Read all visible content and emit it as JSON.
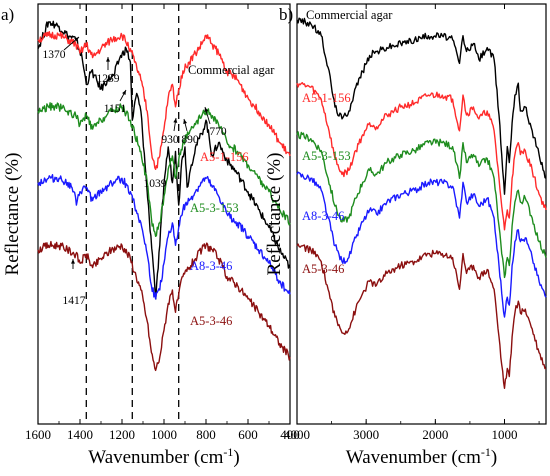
{
  "chart_data": [
    {
      "panel": "a)",
      "type": "line",
      "xlabel": "Wavenumber (cm",
      "xlabel_sup": "-1",
      "xlabel_tail": ")",
      "ylabel": "Reflectance (%)",
      "xlim": [
        1600,
        400
      ],
      "x_ticks": [
        "1600",
        "1400",
        "1200",
        "1000",
        "800",
        "600",
        "400"
      ],
      "y_ticks_shown": false,
      "dashed_reference_lines": [
        1370,
        1151,
        930
      ],
      "series": [
        {
          "name": "Commercial agar",
          "color": "#000000",
          "x": [
            1600,
            1550,
            1500,
            1460,
            1420,
            1390,
            1370,
            1345,
            1300,
            1270,
            1239,
            1210,
            1180,
            1160,
            1151,
            1130,
            1110,
            1090,
            1070,
            1055,
            1039,
            1020,
            1000,
            980,
            960,
            945,
            930,
            915,
            900,
            890,
            870,
            850,
            820,
            800,
            770,
            740,
            700,
            650,
            600,
            550,
            500,
            450,
            400
          ],
          "y": [
            28.0,
            31.0,
            30.5,
            29.5,
            29.0,
            27.0,
            24.0,
            25.5,
            23.5,
            24.5,
            25.0,
            27.0,
            28.0,
            26.5,
            20.0,
            23.0,
            21.0,
            15.0,
            9.0,
            5.0,
            0.0,
            6.0,
            13.0,
            17.0,
            13.0,
            16.5,
            10.5,
            15.5,
            17.0,
            12.5,
            15.0,
            17.0,
            18.5,
            20.0,
            16.0,
            17.5,
            15.5,
            14.0,
            12.0,
            10.0,
            8.0,
            5.5,
            3.5
          ]
        },
        {
          "name": "A5-1-156",
          "color": "#ff2a2a",
          "x": [
            1600,
            1550,
            1500,
            1460,
            1420,
            1400,
            1370,
            1340,
            1300,
            1250,
            1200,
            1160,
            1140,
            1110,
            1080,
            1060,
            1040,
            1020,
            1000,
            980,
            960,
            945,
            930,
            910,
            880,
            850,
            820,
            800,
            770,
            740,
            700,
            650,
            600,
            550,
            500,
            450,
            400
          ],
          "y": [
            29.0,
            29.5,
            29.5,
            29.0,
            28.5,
            27.5,
            28.5,
            27.0,
            28.0,
            29.0,
            29.5,
            28.0,
            26.5,
            24.5,
            21.0,
            16.5,
            14.5,
            16.0,
            19.0,
            22.5,
            24.0,
            21.5,
            23.5,
            25.5,
            26.5,
            27.5,
            28.5,
            29.5,
            28.5,
            27.5,
            25.5,
            24.5,
            22.5,
            21.0,
            19.5,
            17.5,
            16.0
          ]
        },
        {
          "name": "A5-3-153",
          "color": "#1e8c1e",
          "x": [
            1600,
            1550,
            1500,
            1460,
            1420,
            1400,
            1370,
            1340,
            1300,
            1250,
            1200,
            1160,
            1140,
            1110,
            1080,
            1060,
            1040,
            1020,
            1000,
            980,
            960,
            945,
            930,
            910,
            880,
            850,
            820,
            800,
            770,
            740,
            700,
            650,
            600,
            550,
            500,
            450,
            400
          ],
          "y": [
            21.0,
            21.5,
            21.5,
            21.0,
            20.5,
            19.5,
            20.5,
            19.0,
            20.0,
            21.0,
            21.5,
            20.0,
            18.5,
            16.5,
            13.0,
            9.0,
            7.0,
            8.5,
            11.5,
            14.5,
            16.0,
            13.5,
            15.5,
            17.5,
            18.5,
            19.5,
            20.5,
            21.0,
            20.5,
            19.5,
            17.5,
            16.5,
            15.0,
            13.5,
            12.0,
            10.0,
            8.5
          ]
        },
        {
          "name": "A8-3-46",
          "color": "#1a1aff",
          "x": [
            1600,
            1550,
            1500,
            1460,
            1430,
            1417,
            1400,
            1370,
            1340,
            1300,
            1250,
            1200,
            1160,
            1140,
            1110,
            1080,
            1060,
            1040,
            1020,
            1000,
            980,
            960,
            945,
            930,
            910,
            880,
            850,
            820,
            800,
            770,
            740,
            700,
            650,
            600,
            550,
            500,
            450,
            400
          ],
          "y": [
            13.0,
            13.5,
            13.5,
            13.0,
            12.0,
            10.5,
            12.0,
            12.5,
            11.0,
            12.0,
            13.0,
            13.5,
            12.0,
            10.5,
            8.5,
            5.0,
            1.5,
            0.0,
            1.0,
            4.0,
            7.0,
            8.5,
            6.0,
            8.0,
            10.0,
            11.0,
            12.0,
            13.0,
            13.5,
            12.5,
            11.5,
            9.5,
            8.5,
            7.0,
            5.5,
            4.0,
            2.0,
            0.5
          ]
        },
        {
          "name": "A5-3-46",
          "color": "#8b0f0f",
          "x": [
            1600,
            1550,
            1500,
            1460,
            1420,
            1400,
            1370,
            1340,
            1300,
            1250,
            1200,
            1160,
            1140,
            1110,
            1080,
            1060,
            1040,
            1020,
            1000,
            980,
            960,
            945,
            930,
            910,
            880,
            850,
            820,
            800,
            770,
            740,
            700,
            650,
            600,
            550,
            500,
            450,
            400
          ],
          "y": [
            5.5,
            6.0,
            6.0,
            5.5,
            5.0,
            4.0,
            5.0,
            3.5,
            4.5,
            5.5,
            6.0,
            4.5,
            3.0,
            1.0,
            -2.5,
            -6.0,
            -8.0,
            -6.5,
            -3.5,
            -0.5,
            1.0,
            -1.5,
            0.5,
            2.5,
            3.5,
            4.5,
            5.5,
            6.0,
            5.5,
            4.5,
            2.5,
            1.5,
            0.0,
            -1.5,
            -3.0,
            -5.0,
            -6.5
          ]
        }
      ],
      "annotations": [
        "1370",
        "1239",
        "1151",
        "1039",
        "930",
        "890",
        "770",
        "1417"
      ]
    },
    {
      "panel": "b)",
      "type": "line",
      "xlabel": "Wavenumber (cm",
      "xlabel_sup": "-1",
      "xlabel_tail": ")",
      "ylabel": "Reflectance (%)",
      "xlim": [
        4000,
        400
      ],
      "x_ticks": [
        "4000",
        "3000",
        "2000",
        "1000"
      ],
      "y_ticks_shown": false,
      "series": [
        {
          "name": "Commercial agar",
          "color": "#000000",
          "x": [
            4000,
            3800,
            3650,
            3550,
            3450,
            3350,
            3250,
            3150,
            3050,
            2950,
            2850,
            2700,
            2500,
            2300,
            2100,
            1900,
            1750,
            1650,
            1600,
            1550,
            1450,
            1370,
            1250,
            1150,
            1080,
            1040,
            1000,
            960,
            930,
            890,
            850,
            800,
            770,
            700,
            600,
            500,
            400
          ],
          "y": [
            29.0,
            28.5,
            27.0,
            23.0,
            18.0,
            16.5,
            17.5,
            20.5,
            22.5,
            24.5,
            25.0,
            25.5,
            26.0,
            26.5,
            27.0,
            27.0,
            26.5,
            23.5,
            27.0,
            25.0,
            26.0,
            24.0,
            25.5,
            24.0,
            17.0,
            12.0,
            7.0,
            13.0,
            11.0,
            16.0,
            19.5,
            21.0,
            17.5,
            18.0,
            15.0,
            12.0,
            9.0
          ]
        },
        {
          "name": "A5-1-156",
          "color": "#ff2a2a",
          "x": [
            4000,
            3800,
            3650,
            3550,
            3450,
            3350,
            3250,
            3150,
            3050,
            2950,
            2850,
            2700,
            2500,
            2300,
            2100,
            1900,
            1750,
            1650,
            1600,
            1550,
            1450,
            1370,
            1250,
            1150,
            1080,
            1040,
            1000,
            960,
            930,
            890,
            850,
            800,
            770,
            700,
            600,
            500,
            400
          ],
          "y": [
            21.0,
            20.5,
            19.0,
            15.5,
            11.5,
            9.5,
            10.0,
            12.5,
            14.5,
            16.0,
            15.5,
            17.0,
            18.0,
            18.5,
            19.5,
            19.5,
            19.0,
            15.0,
            19.5,
            17.0,
            18.0,
            16.5,
            17.5,
            15.0,
            9.0,
            5.5,
            2.5,
            5.0,
            4.0,
            9.0,
            12.0,
            13.5,
            12.0,
            12.5,
            10.0,
            7.0,
            5.0
          ]
        },
        {
          "name": "A5-3-153",
          "color": "#1e8c1e",
          "x": [
            4000,
            3800,
            3650,
            3550,
            3450,
            3350,
            3250,
            3150,
            3050,
            2950,
            2850,
            2700,
            2500,
            2300,
            2100,
            1900,
            1750,
            1650,
            1600,
            1550,
            1450,
            1370,
            1250,
            1150,
            1080,
            1040,
            1000,
            960,
            930,
            890,
            850,
            800,
            770,
            700,
            600,
            500,
            400
          ],
          "y": [
            14.5,
            14.0,
            12.5,
            9.0,
            5.5,
            3.5,
            4.0,
            6.5,
            8.5,
            10.0,
            9.5,
            11.0,
            12.0,
            12.5,
            13.5,
            13.5,
            13.0,
            9.0,
            13.5,
            11.0,
            12.0,
            10.5,
            11.5,
            9.0,
            3.0,
            -0.5,
            -3.5,
            -1.0,
            -2.0,
            3.0,
            6.0,
            7.5,
            6.0,
            6.5,
            4.0,
            1.0,
            -1.0
          ]
        },
        {
          "name": "A8-3-46",
          "color": "#1a1aff",
          "x": [
            4000,
            3800,
            3650,
            3550,
            3450,
            3350,
            3250,
            3150,
            3050,
            2950,
            2850,
            2700,
            2500,
            2300,
            2100,
            1900,
            1750,
            1650,
            1600,
            1550,
            1450,
            1370,
            1250,
            1150,
            1080,
            1040,
            1000,
            960,
            930,
            890,
            850,
            800,
            770,
            700,
            600,
            500,
            400
          ],
          "y": [
            9.5,
            9.0,
            7.5,
            4.0,
            0.5,
            -1.5,
            -1.0,
            1.5,
            3.5,
            5.0,
            4.5,
            6.0,
            7.0,
            7.5,
            8.5,
            8.5,
            8.0,
            4.0,
            8.5,
            6.0,
            7.0,
            5.5,
            6.5,
            4.0,
            -2.0,
            -5.5,
            -8.5,
            -6.0,
            -7.0,
            -2.0,
            1.0,
            2.5,
            1.0,
            1.5,
            -1.0,
            -4.0,
            -6.0
          ]
        },
        {
          "name": "A5-3-46",
          "color": "#8b0f0f",
          "x": [
            4000,
            3800,
            3650,
            3550,
            3450,
            3350,
            3250,
            3150,
            3050,
            2950,
            2850,
            2700,
            2500,
            2300,
            2100,
            1900,
            1750,
            1650,
            1600,
            1550,
            1450,
            1370,
            1250,
            1150,
            1080,
            1040,
            1000,
            960,
            930,
            890,
            850,
            800,
            770,
            700,
            600,
            500,
            400
          ],
          "y": [
            0.5,
            0.0,
            -1.5,
            -5.0,
            -8.5,
            -10.5,
            -10.0,
            -7.5,
            -5.5,
            -4.0,
            -4.5,
            -3.0,
            -2.0,
            -1.5,
            -0.5,
            -0.5,
            -1.0,
            -5.0,
            -0.5,
            -3.0,
            -2.0,
            -3.5,
            -2.5,
            -5.0,
            -11.0,
            -14.5,
            -17.5,
            -15.0,
            -16.0,
            -11.0,
            -8.0,
            -6.5,
            -8.0,
            -7.5,
            -10.0,
            -13.0,
            -15.0
          ]
        }
      ]
    }
  ]
}
